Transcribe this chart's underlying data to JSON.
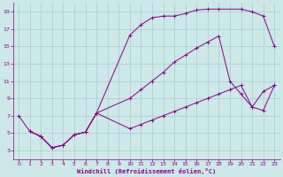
{
  "bg_color": "#cce8e8",
  "grid_color": "#aacccc",
  "line_color": "#880088",
  "marker_color": "#880088",
  "xlabel": "Windchill (Refroidissement éolien,°C)",
  "xlabel_color": "#880088",
  "tick_color": "#880088",
  "xlim": [
    -0.5,
    23.5
  ],
  "ylim": [
    2,
    20
  ],
  "xticks": [
    0,
    1,
    2,
    3,
    4,
    5,
    6,
    7,
    8,
    9,
    10,
    11,
    12,
    13,
    14,
    15,
    16,
    17,
    18,
    19,
    20,
    21,
    22,
    23
  ],
  "yticks": [
    3,
    5,
    7,
    9,
    11,
    13,
    15,
    17,
    19
  ],
  "line1_x": [
    0,
    1,
    2,
    3,
    4,
    5,
    6,
    7,
    10,
    11,
    12,
    13,
    14,
    15,
    16,
    17,
    18,
    20,
    21,
    22,
    23
  ],
  "line1_y": [
    7.0,
    5.2,
    4.6,
    3.3,
    3.6,
    4.8,
    5.1,
    7.3,
    16.3,
    17.5,
    18.3,
    18.5,
    18.5,
    18.8,
    19.2,
    19.3,
    19.3,
    19.3,
    19.0,
    18.5,
    15.0
  ],
  "line2_x": [
    1,
    2,
    3,
    4,
    5,
    6,
    7,
    10,
    11,
    12,
    13,
    14,
    15,
    16,
    17,
    18,
    19,
    20,
    21,
    22,
    23
  ],
  "line2_y": [
    5.2,
    4.6,
    3.3,
    3.6,
    4.8,
    5.1,
    7.3,
    9.0,
    10.0,
    11.0,
    12.0,
    13.2,
    14.0,
    14.8,
    15.5,
    16.2,
    11.0,
    9.5,
    8.0,
    7.6,
    10.5
  ],
  "line3_x": [
    1,
    2,
    3,
    4,
    5,
    6,
    7,
    10,
    11,
    12,
    13,
    14,
    15,
    16,
    17,
    18,
    19,
    20,
    21,
    22,
    23
  ],
  "line3_y": [
    5.2,
    4.6,
    3.3,
    3.6,
    4.8,
    5.1,
    7.3,
    5.5,
    6.0,
    6.5,
    7.0,
    7.5,
    8.0,
    8.5,
    9.0,
    9.5,
    10.0,
    10.5,
    8.0,
    9.8,
    10.5
  ]
}
